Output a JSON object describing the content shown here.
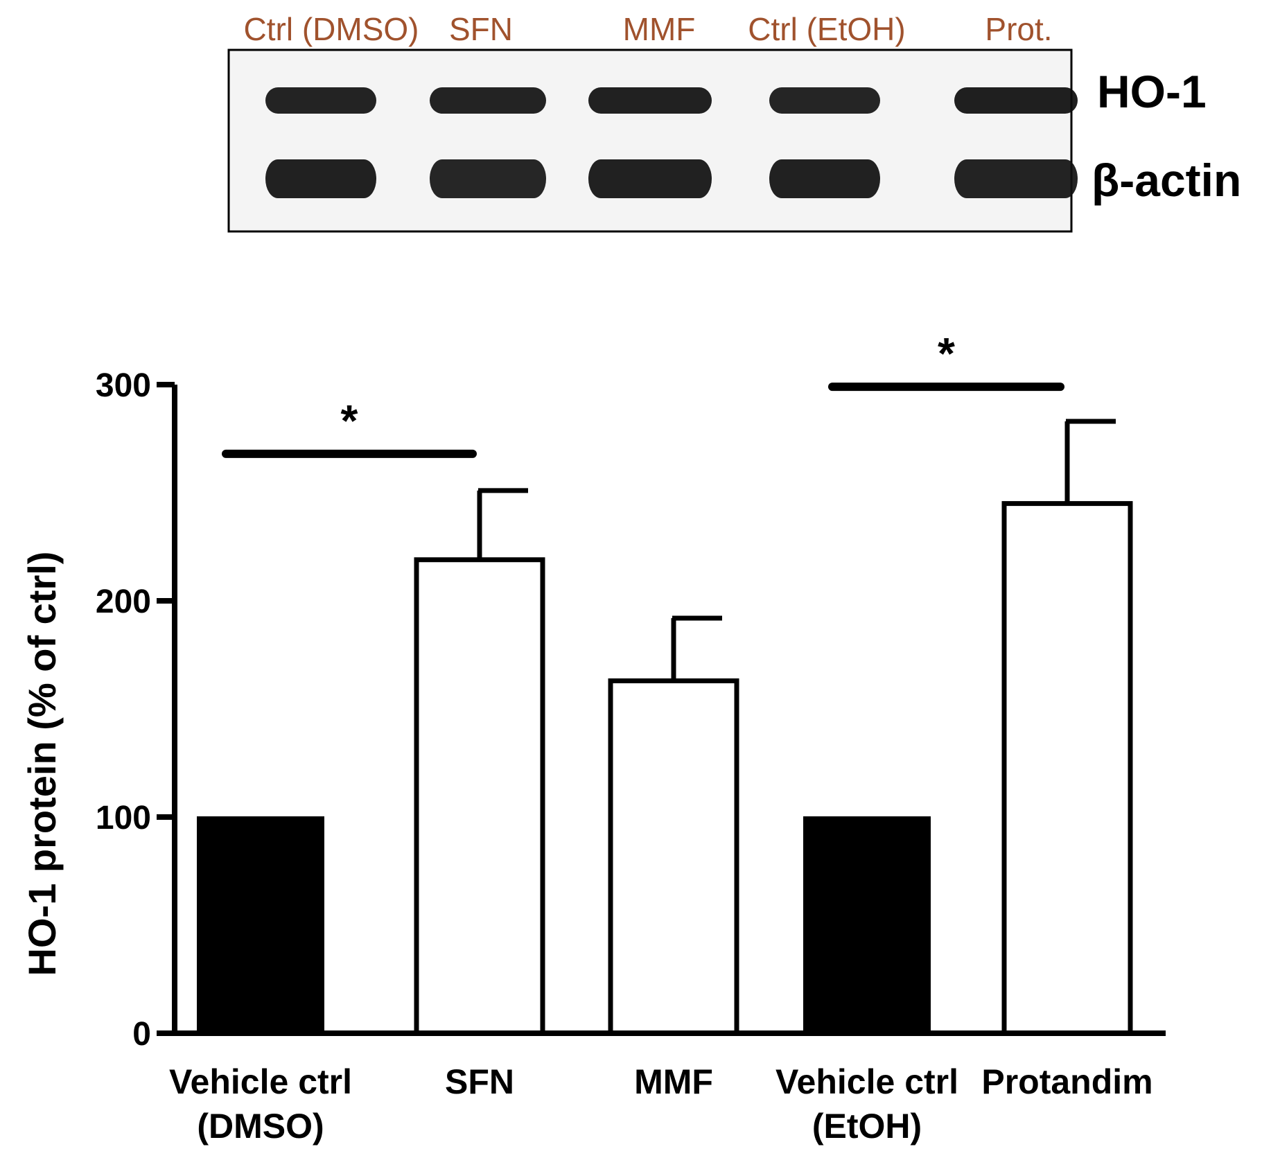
{
  "blot": {
    "lanes": [
      "Ctrl (DMSO)",
      "SFN",
      "MMF",
      "Ctrl (EtOH)",
      "Prot."
    ],
    "rows": [
      "HO-1",
      "β-actin"
    ],
    "band_intensity": {
      "HO-1": [
        0.85,
        0.85,
        0.9,
        0.8,
        0.95
      ],
      "β-actin": [
        0.9,
        0.75,
        0.9,
        0.9,
        0.85
      ]
    }
  },
  "chart_data": {
    "type": "bar",
    "categories": [
      [
        "Vehicle ctrl",
        "(DMSO)"
      ],
      [
        "SFN"
      ],
      [
        "MMF"
      ],
      [
        "Vehicle ctrl",
        "(EtOH)"
      ],
      [
        "Protandim"
      ]
    ],
    "values": [
      100,
      219,
      163,
      100,
      245
    ],
    "errors": [
      0,
      32,
      29,
      0,
      38
    ],
    "fill": [
      "#000000",
      "#ffffff",
      "#ffffff",
      "#000000",
      "#ffffff"
    ],
    "ylabel": "HO-1 protein (% of ctrl)",
    "ylim": [
      0,
      300
    ],
    "yticks": [
      0,
      100,
      200,
      300
    ],
    "grid": false,
    "significance": [
      {
        "from": 0,
        "to": 1,
        "label": "*",
        "y": 268
      },
      {
        "from": 3,
        "to": 4,
        "label": "*",
        "y": 299
      }
    ]
  }
}
